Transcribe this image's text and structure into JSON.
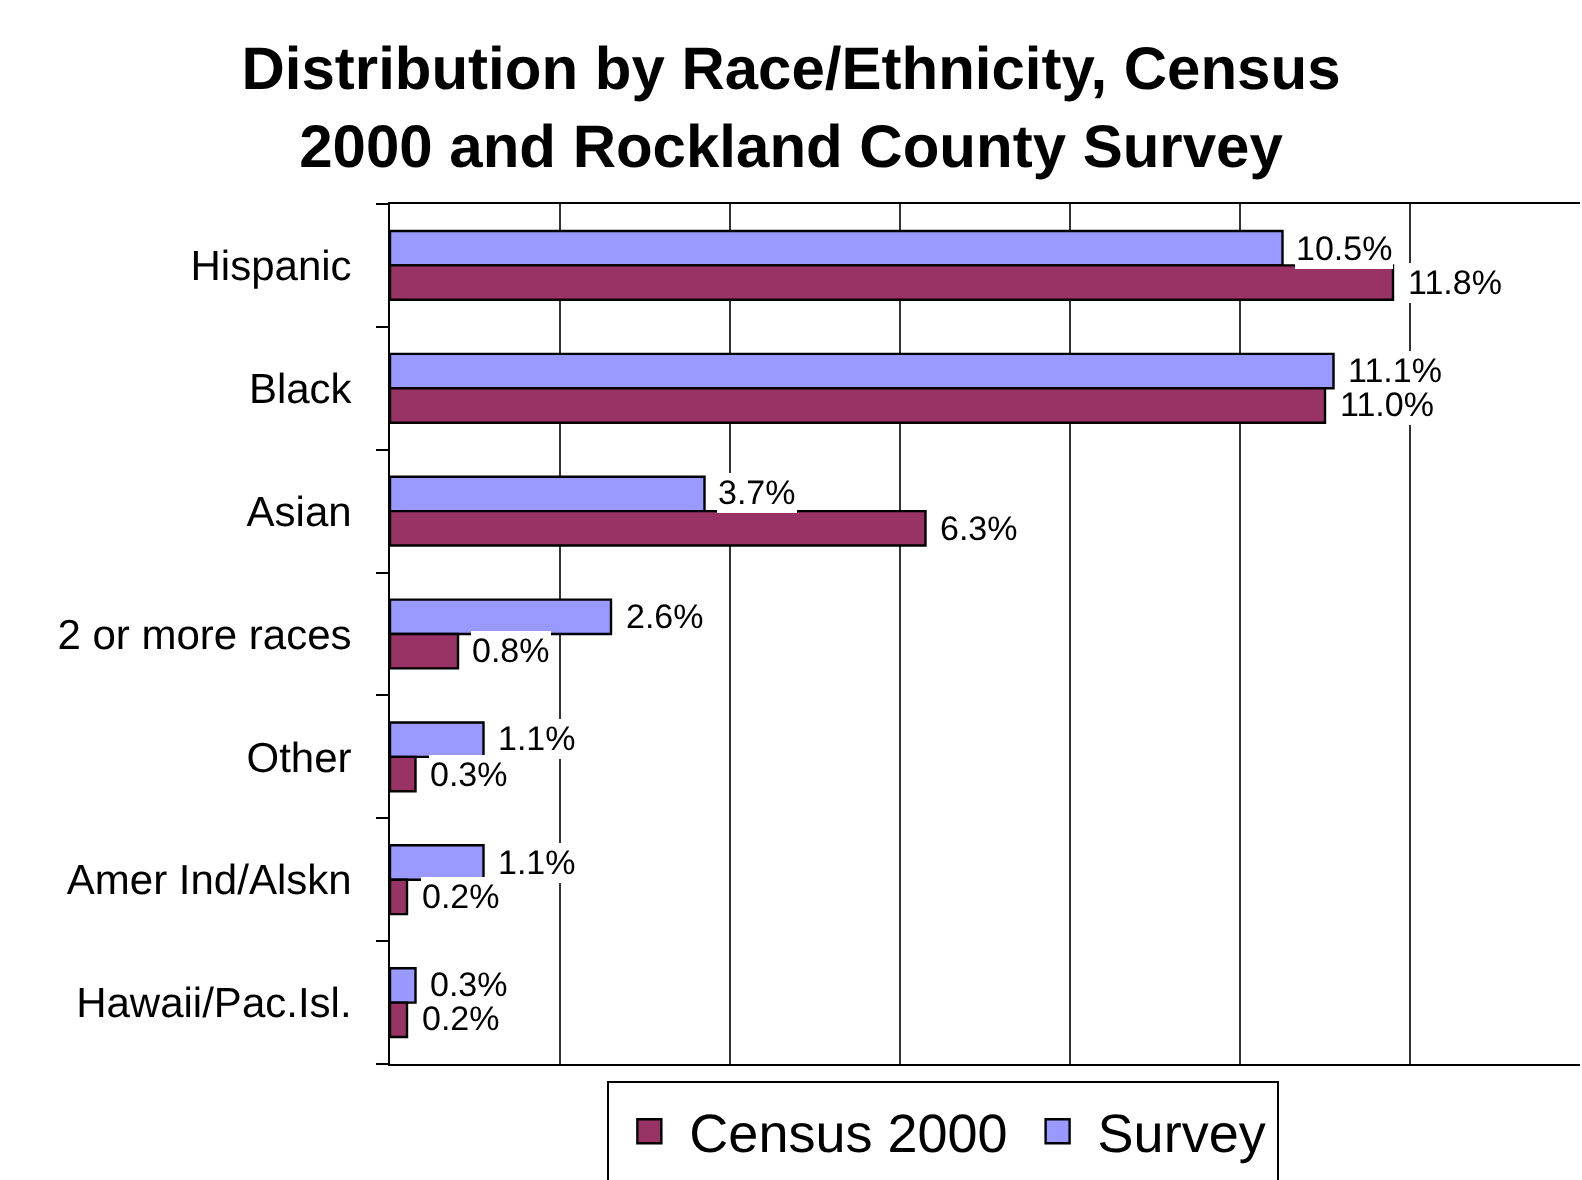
{
  "chart_data": {
    "type": "bar",
    "orientation": "horizontal",
    "title": "Distribution by Race/Ethnicity, Census 2000 and Rockland County Survey",
    "categories": [
      "Hispanic",
      "Black",
      "Asian",
      "2 or more races",
      "Other",
      "Amer Ind/Alskn",
      "Hawaii/Pac.Isl."
    ],
    "series": [
      {
        "name": "Survey",
        "color": "#9999ff",
        "values": [
          10.5,
          11.1,
          3.7,
          2.6,
          1.1,
          1.1,
          0.3
        ],
        "value_labels": [
          "10.5%",
          "11.1%",
          "3.7%",
          "2.6%",
          "1.1%",
          "1.1%",
          "0.3%"
        ]
      },
      {
        "name": "Census 2000",
        "color": "#993366",
        "values": [
          11.8,
          11.0,
          6.3,
          0.8,
          0.3,
          0.2,
          0.2
        ],
        "value_labels": [
          "11.8%",
          "11.0%",
          "6.3%",
          "0.8%",
          "0.3%",
          "0.2%",
          "0.2%"
        ]
      }
    ],
    "xlim": [
      0,
      14
    ],
    "xticks": [
      {
        "value": 0,
        "label": null
      },
      {
        "value": 2,
        "label": null
      },
      {
        "value": 4,
        "label": null
      },
      {
        "value": 6,
        "label": null
      },
      {
        "value": 8,
        "label": null
      },
      {
        "value": 10,
        "label": null
      },
      {
        "value": 12,
        "label": null
      }
    ],
    "grid": "x",
    "legend": "bottom",
    "tick_labels": "y"
  }
}
